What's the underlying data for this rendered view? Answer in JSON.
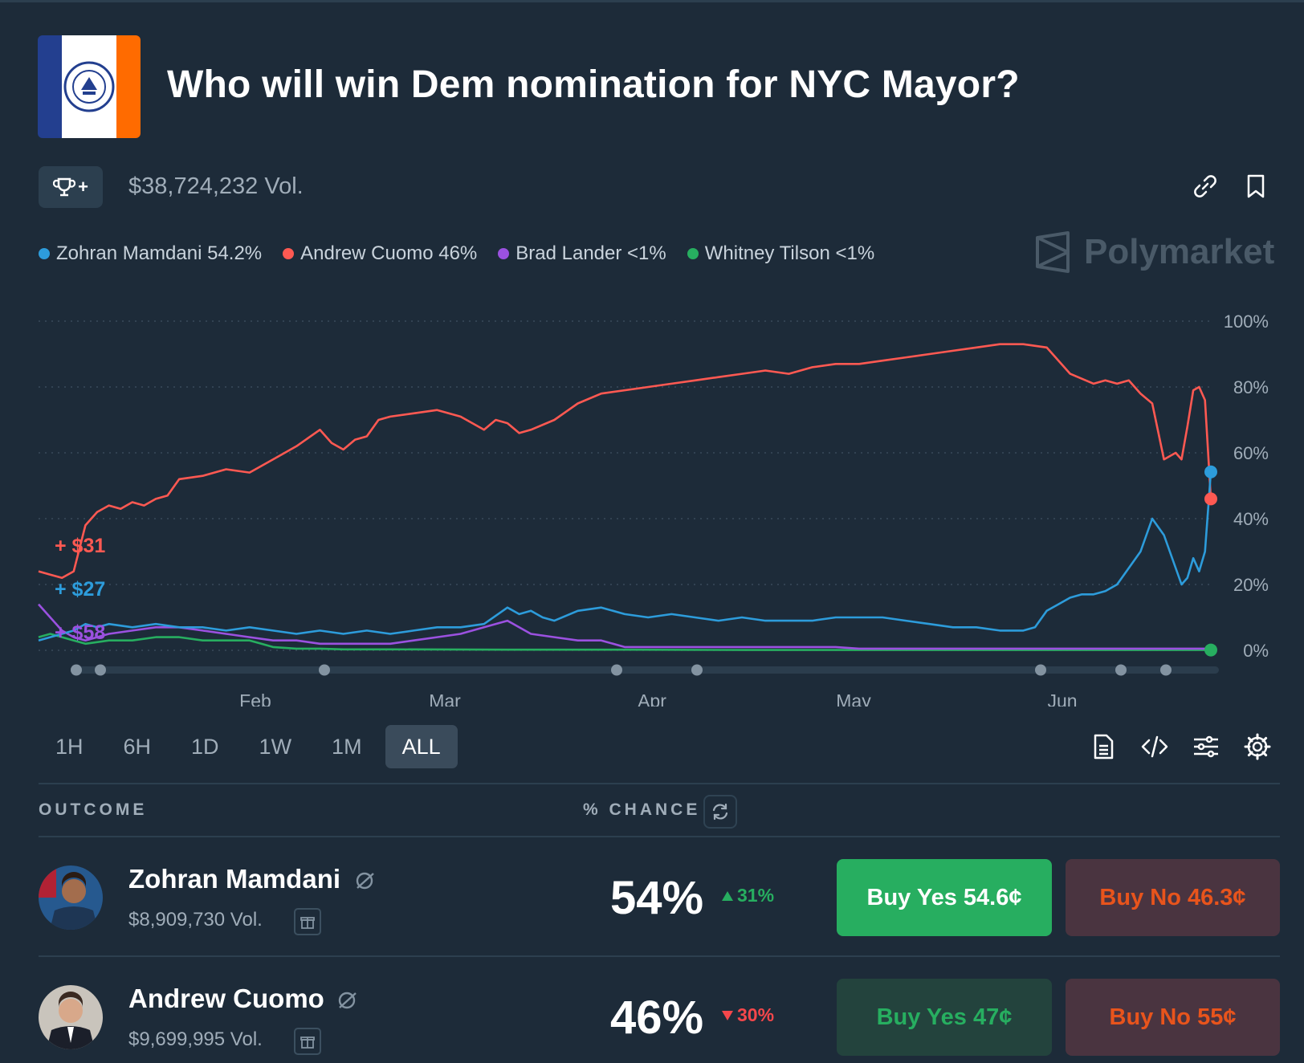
{
  "header": {
    "title": "Who will win Dem nomination for NYC Mayor?",
    "volume": "$38,724,232 Vol.",
    "trophy_label": "+"
  },
  "brand": {
    "name": "Polymarket"
  },
  "legend": [
    {
      "label": "Zohran Mamdani 54.2%",
      "color": "#2d9cdb"
    },
    {
      "label": "Andrew Cuomo 46%",
      "color": "#ff5952"
    },
    {
      "label": "Brad Lander <1%",
      "color": "#9b51e0"
    },
    {
      "label": "Whitney Tilson <1%",
      "color": "#27ae60"
    }
  ],
  "annotations": {
    "red": "+ $31",
    "blue": "+ $27",
    "purple": "+ $58"
  },
  "timeframes": [
    "1H",
    "6H",
    "1D",
    "1W",
    "1M",
    "ALL"
  ],
  "active_timeframe": "ALL",
  "table": {
    "outcome_header": "OUTCOME",
    "chance_header": "% CHANCE",
    "rows": [
      {
        "name": "Zohran Mamdani",
        "volume": "$8,909,730 Vol.",
        "chance": "54%",
        "change": "31%",
        "direction": "up",
        "buy_yes": "Buy Yes 54.6¢",
        "buy_no": "Buy No 46.3¢"
      },
      {
        "name": "Andrew Cuomo",
        "volume": "$9,699,995 Vol.",
        "chance": "46%",
        "change": "30%",
        "direction": "down",
        "buy_yes": "Buy Yes 47¢",
        "buy_no": "Buy No 55¢"
      }
    ]
  },
  "chart_data": {
    "type": "line",
    "title": "",
    "xlabel": "",
    "ylabel": "",
    "x_ticks": [
      "Feb",
      "Mar",
      "Apr",
      "May",
      "Jun"
    ],
    "y_ticks": [
      "100%",
      "80%",
      "60%",
      "40%",
      "20%",
      "0%"
    ],
    "ylim": [
      0,
      100
    ],
    "grid": true,
    "x_domain": [
      0,
      100
    ],
    "series": [
      {
        "name": "Andrew Cuomo",
        "color": "#ff5952",
        "x": [
          0,
          1,
          2,
          3,
          4,
          5,
          6,
          7,
          8,
          9,
          10,
          11,
          12,
          14,
          16,
          18,
          20,
          22,
          24,
          25,
          26,
          27,
          28,
          29,
          30,
          32,
          34,
          36,
          38,
          39,
          40,
          41,
          42,
          44,
          46,
          48,
          50,
          52,
          54,
          56,
          58,
          60,
          62,
          64,
          66,
          68,
          70,
          72,
          74,
          76,
          78,
          80,
          82,
          84,
          86,
          88,
          90,
          91,
          92,
          93,
          94,
          95,
          96,
          97,
          97.5,
          98,
          98.5,
          99,
          99.5,
          100
        ],
        "y": [
          24,
          23,
          22,
          24,
          38,
          42,
          44,
          43,
          45,
          44,
          46,
          47,
          52,
          53,
          55,
          54,
          58,
          62,
          67,
          63,
          61,
          64,
          65,
          70,
          71,
          72,
          73,
          71,
          67,
          70,
          69,
          66,
          67,
          70,
          75,
          78,
          79,
          80,
          81,
          82,
          83,
          84,
          85,
          84,
          86,
          87,
          87,
          88,
          89,
          90,
          91,
          92,
          93,
          93,
          92,
          84,
          81,
          82,
          81,
          82,
          78,
          75,
          58,
          60,
          58,
          68,
          79,
          80,
          76,
          46
        ]
      },
      {
        "name": "Zohran Mamdani",
        "color": "#2d9cdb",
        "x": [
          0,
          1,
          2,
          3,
          4,
          5,
          6,
          8,
          10,
          12,
          14,
          16,
          18,
          20,
          22,
          24,
          26,
          28,
          30,
          32,
          34,
          36,
          38,
          40,
          41,
          42,
          43,
          44,
          46,
          48,
          50,
          52,
          54,
          56,
          58,
          60,
          62,
          64,
          66,
          68,
          70,
          72,
          74,
          76,
          78,
          80,
          82,
          84,
          85,
          86,
          87,
          88,
          89,
          90,
          91,
          92,
          93,
          94,
          95,
          96,
          97,
          97.5,
          98,
          98.5,
          99,
          99.5,
          100
        ],
        "y": [
          3,
          4,
          5,
          6,
          8,
          7,
          8,
          7,
          8,
          7,
          7,
          6,
          7,
          6,
          5,
          6,
          5,
          6,
          5,
          6,
          7,
          7,
          8,
          13,
          11,
          12,
          10,
          9,
          12,
          13,
          11,
          10,
          11,
          10,
          9,
          10,
          9,
          9,
          9,
          10,
          10,
          10,
          9,
          8,
          7,
          7,
          6,
          6,
          7,
          12,
          14,
          16,
          17,
          17,
          18,
          20,
          25,
          30,
          40,
          35,
          25,
          20,
          22,
          28,
          24,
          30,
          54.2
        ]
      },
      {
        "name": "Brad Lander",
        "color": "#9b51e0",
        "x": [
          0,
          1,
          2,
          3,
          4,
          6,
          8,
          10,
          12,
          14,
          16,
          18,
          20,
          22,
          24,
          26,
          28,
          30,
          32,
          34,
          36,
          38,
          40,
          42,
          44,
          46,
          48,
          50,
          52,
          54,
          56,
          58,
          60,
          62,
          64,
          66,
          68,
          70,
          72,
          74,
          76,
          78,
          80,
          82,
          84,
          86,
          88,
          90,
          92,
          94,
          96,
          98,
          100
        ],
        "y": [
          14,
          10,
          6,
          4,
          3,
          5,
          6,
          7,
          7,
          6,
          5,
          4,
          3,
          3,
          2,
          2,
          2,
          2,
          3,
          4,
          5,
          7,
          9,
          5,
          4,
          3,
          3,
          1,
          1,
          1,
          1,
          1,
          1,
          1,
          1,
          1,
          1,
          0.5,
          0.5,
          0.5,
          0.5,
          0.5,
          0.5,
          0.5,
          0.5,
          0.5,
          0.5,
          0.5,
          0.5,
          0.5,
          0.5,
          0.5,
          0.5
        ]
      },
      {
        "name": "Whitney Tilson",
        "color": "#27ae60",
        "x": [
          0,
          1,
          2,
          3,
          4,
          6,
          8,
          10,
          12,
          14,
          16,
          18,
          19,
          20,
          22,
          24,
          26,
          30,
          40,
          50,
          60,
          70,
          80,
          90,
          100
        ],
        "y": [
          4,
          5,
          4,
          3,
          2,
          3,
          3,
          4,
          4,
          3,
          3,
          3,
          2,
          1,
          0.5,
          0.5,
          0.3,
          0.3,
          0.2,
          0.2,
          0.1,
          0.1,
          0.1,
          0.1,
          0.1
        ]
      }
    ]
  }
}
